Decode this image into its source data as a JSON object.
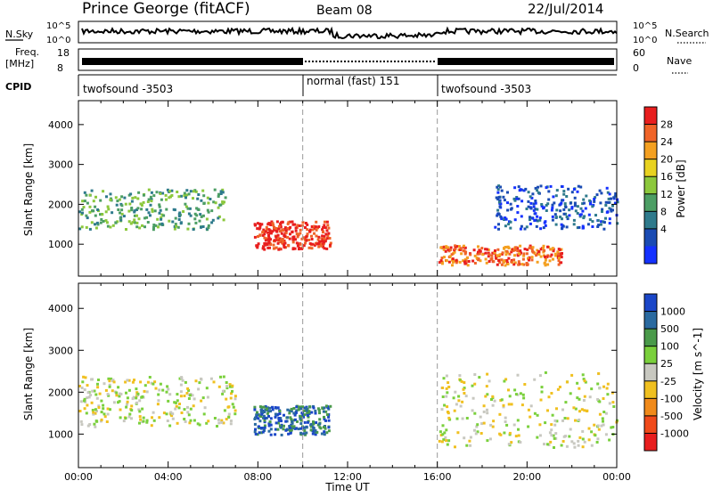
{
  "header": {
    "station": "Prince George (fitACF)",
    "beam": "Beam 08",
    "date": "22/Jul/2014"
  },
  "strips": {
    "nsky_label": "N.Sky",
    "nsky_ticks": [
      "10^5",
      "10^0"
    ],
    "nsearch_label": "N.Search",
    "nsearch_ticks": [
      "10^5",
      "10^0"
    ],
    "freq_label_line1": "Freq.",
    "freq_label_line2": "[MHz]",
    "freq_ticks": [
      "18",
      "8"
    ],
    "nave_label": "Nave",
    "nave_ticks": [
      "60",
      "0"
    ],
    "cpid_label": "CPID",
    "cpid_segments": [
      {
        "label": "twofsound -3503",
        "start_h": 0,
        "end_h": 10
      },
      {
        "label": "normal (fast) 151",
        "start_h": 10,
        "end_h": 16
      },
      {
        "label": "twofsound -3503",
        "start_h": 16,
        "end_h": 24
      }
    ]
  },
  "chart_data": [
    {
      "type": "heatmap",
      "name": "power",
      "ylabel": "Slant Range [km]",
      "xlabel": "",
      "xlim": [
        0,
        24
      ],
      "ylim": [
        200,
        4600
      ],
      "y_ticks": [
        1000,
        2000,
        3000,
        4000
      ],
      "colorbar": {
        "label": "Power [dB]",
        "ticks": [
          "4",
          "8",
          "12",
          "16",
          "20",
          "24",
          "28"
        ],
        "colors": [
          "#1431ff",
          "#1a4bb3",
          "#2e7a8c",
          "#4c9e64",
          "#8cc83c",
          "#e8d220",
          "#f4a020",
          "#f06428",
          "#e81e1e"
        ]
      },
      "features": [
        {
          "t0": 0.0,
          "t1": 6.5,
          "r0": 1400,
          "r1": 2400,
          "level": 3
        },
        {
          "t0": 7.8,
          "t1": 11.2,
          "r0": 900,
          "r1": 1600,
          "level": 8
        },
        {
          "t0": 16.0,
          "t1": 21.5,
          "r0": 500,
          "r1": 1000,
          "level": 7
        },
        {
          "t0": 18.5,
          "t1": 24.0,
          "r0": 1400,
          "r1": 2500,
          "level": 1
        }
      ]
    },
    {
      "type": "heatmap",
      "name": "velocity",
      "ylabel": "Slant Range [km]",
      "xlabel": "Time UT",
      "xlim": [
        0,
        24
      ],
      "ylim": [
        200,
        4600
      ],
      "y_ticks": [
        1000,
        2000,
        3000,
        4000
      ],
      "x_ticks": [
        "00:00",
        "04:00",
        "08:00",
        "12:00",
        "16:00",
        "20:00",
        "00:00"
      ],
      "colorbar": {
        "label": "Velocity [m s^-1]",
        "ticks": [
          "1000",
          "500",
          "100",
          "25",
          "-25",
          "-100",
          "-500",
          "-1000"
        ],
        "colors": [
          "#1a46c8",
          "#2a6aa0",
          "#4a9a4a",
          "#7ad03c",
          "#c8c8c0",
          "#f0c020",
          "#f08a1a",
          "#f04a1a",
          "#e81e1e"
        ]
      },
      "features": [
        {
          "t0": 0.0,
          "t1": 7.0,
          "r0": 1200,
          "r1": 2400,
          "level": 4
        },
        {
          "t0": 7.8,
          "t1": 11.2,
          "r0": 1000,
          "r1": 1700,
          "level": 1
        },
        {
          "t0": 16.0,
          "t1": 24.0,
          "r0": 700,
          "r1": 2500,
          "level": 4
        }
      ]
    }
  ]
}
